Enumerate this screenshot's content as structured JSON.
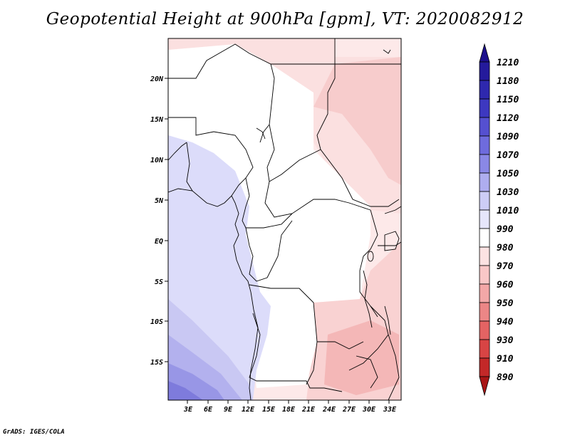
{
  "title": "Geopotential Height at 900hPa [gpm], VT: 2020082912",
  "footer": "GrADS: IGES/COLA",
  "map": {
    "lon_labels": [
      "3E",
      "6E",
      "9E",
      "12E",
      "15E",
      "18E",
      "21E",
      "24E",
      "27E",
      "30E",
      "33E"
    ],
    "lat_labels": [
      "20N",
      "15N",
      "10N",
      "5N",
      "EQ",
      "5S",
      "10S",
      "15S"
    ]
  },
  "colorbar": {
    "levels": [
      "890",
      "910",
      "930",
      "940",
      "950",
      "960",
      "970",
      "980",
      "990",
      "1010",
      "1030",
      "1050",
      "1070",
      "1090",
      "1120",
      "1150",
      "1180",
      "1210"
    ],
    "colors": {
      "top_arrow": "#1c0f8c",
      "band_1180_1210": "#241a9c",
      "band_1150_1180": "#2e28ae",
      "band_1120_1150": "#3d38c0",
      "band_1090_1120": "#5550d0",
      "band_1070_1090": "#6e6bdd",
      "band_1050_1070": "#8a88e6",
      "band_1030_1050": "#aeadef",
      "band_1010_1030": "#cdcdf6",
      "band_990_1010": "#e6e6fb",
      "band_980_990": "#ffffff",
      "band_970_980": "#fde2e2",
      "band_960_970": "#f9c7c7",
      "band_950_960": "#f3a7a7",
      "band_940_950": "#ec8686",
      "band_930_940": "#e46363",
      "band_910_930": "#d84444",
      "band_890_910": "#c32828",
      "bottom_arrow": "#a81515"
    }
  }
}
